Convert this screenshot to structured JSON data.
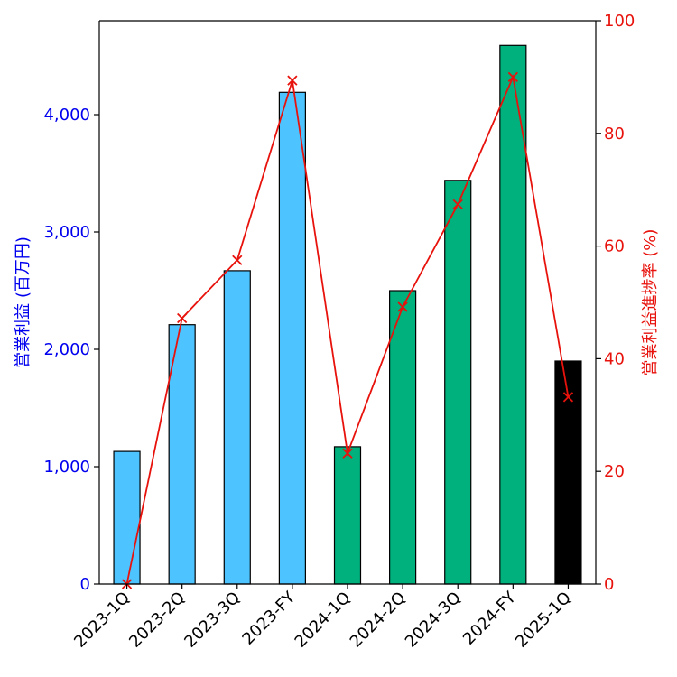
{
  "chart_data": {
    "type": "bar",
    "categories": [
      "2023-1Q",
      "2023-2Q",
      "2023-3Q",
      "2023-FY",
      "2024-1Q",
      "2024-2Q",
      "2024-3Q",
      "2024-FY",
      "2025-1Q"
    ],
    "series": [
      {
        "name": "営業利益 (百万円)",
        "type": "bar",
        "axis": "left",
        "values": [
          1130,
          2210,
          2670,
          4190,
          1170,
          2500,
          3440,
          4590,
          1900
        ],
        "colors": [
          "#4dc3ff",
          "#4dc3ff",
          "#4dc3ff",
          "#4dc3ff",
          "#00b07d",
          "#00b07d",
          "#00b07d",
          "#00b07d",
          "#000000"
        ]
      },
      {
        "name": "営業利益進捗率 (%)",
        "type": "line",
        "axis": "right",
        "marker": "x",
        "color": "#e8120c",
        "values": [
          0,
          47.2,
          57.5,
          89.4,
          23.2,
          49.2,
          67.4,
          90.0,
          33.2
        ]
      }
    ],
    "ylabel": "営業利益 (百万円)",
    "y2label": "営業利益進捗率 (%)",
    "ylim": [
      0,
      4800
    ],
    "y2lim": [
      0,
      100
    ],
    "yticks": [
      "0",
      "1,000",
      "2,000",
      "3,000",
      "4,000"
    ],
    "ytick_values": [
      0,
      1000,
      2000,
      3000,
      4000
    ],
    "y2ticks": [
      "0",
      "20",
      "40",
      "60",
      "80",
      "100"
    ],
    "y2tick_values": [
      0,
      20,
      40,
      60,
      80,
      100
    ],
    "left_axis_color": "#0000ee",
    "right_axis_color": "#e8120c",
    "grid": false
  }
}
